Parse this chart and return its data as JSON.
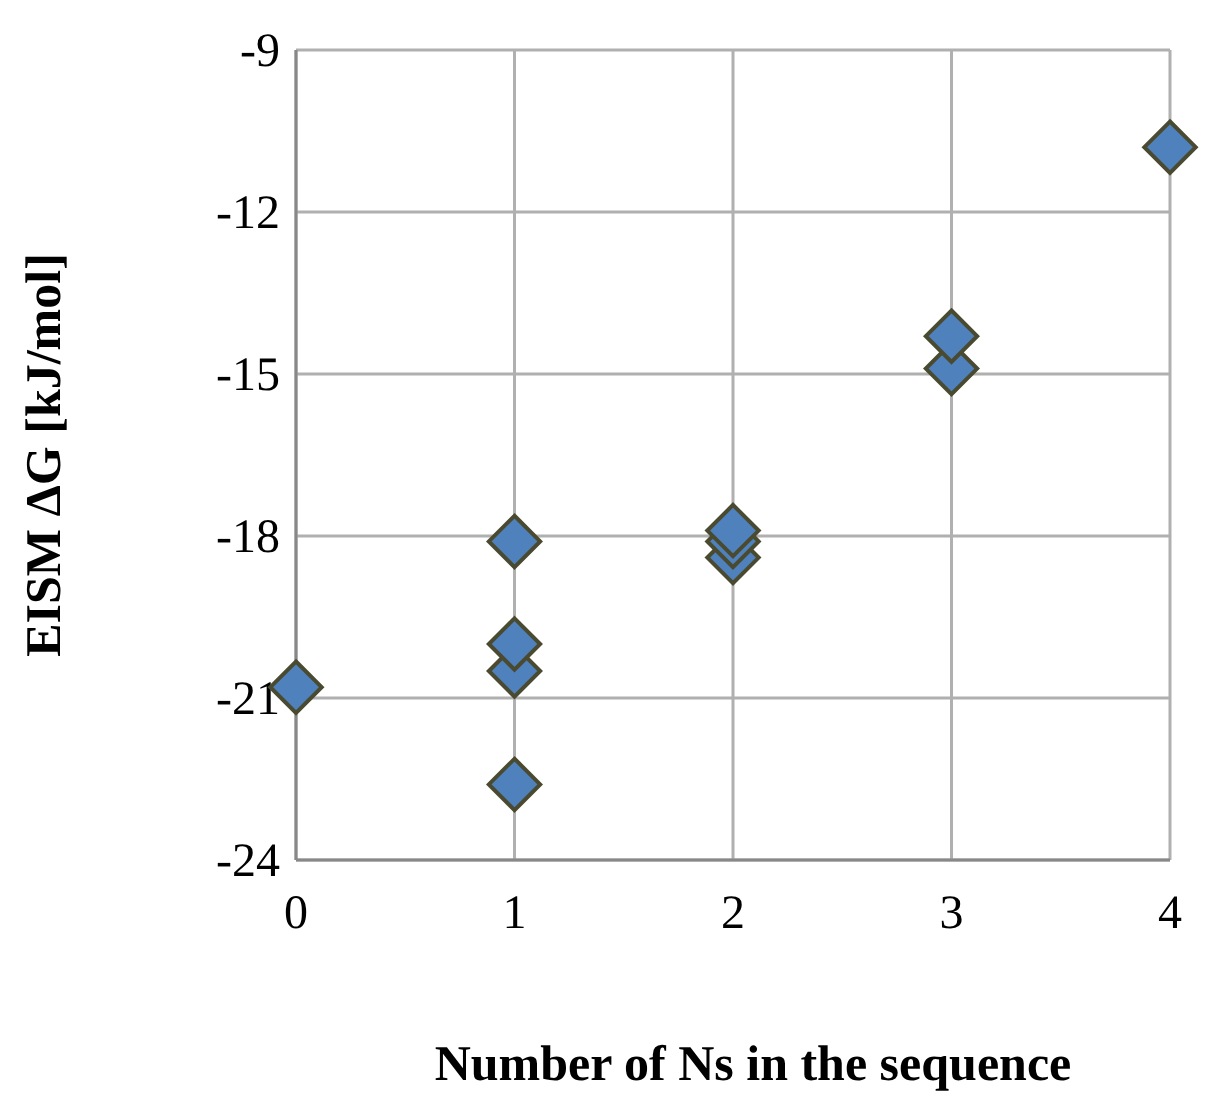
{
  "chart_data": {
    "type": "scatter",
    "xlabel": "Number of Ns in the sequence",
    "ylabel": "EISM ΔG [kJ/mol]",
    "x": [
      0,
      1,
      1,
      1,
      1,
      2,
      2,
      2,
      3,
      3,
      4
    ],
    "values": [
      -20.8,
      -18.1,
      -20.0,
      -20.5,
      -22.6,
      -17.9,
      -18.1,
      -18.4,
      -14.3,
      -14.9,
      -10.8
    ],
    "color": "#4f81bd",
    "marker": "diamond",
    "xlim": [
      0,
      4
    ],
    "xticks": [
      0,
      1,
      2,
      3,
      4
    ],
    "ylim": [
      -24,
      -9
    ],
    "yticks": [
      -24,
      -21,
      -18,
      -15,
      -12,
      -9
    ],
    "grid": true
  }
}
